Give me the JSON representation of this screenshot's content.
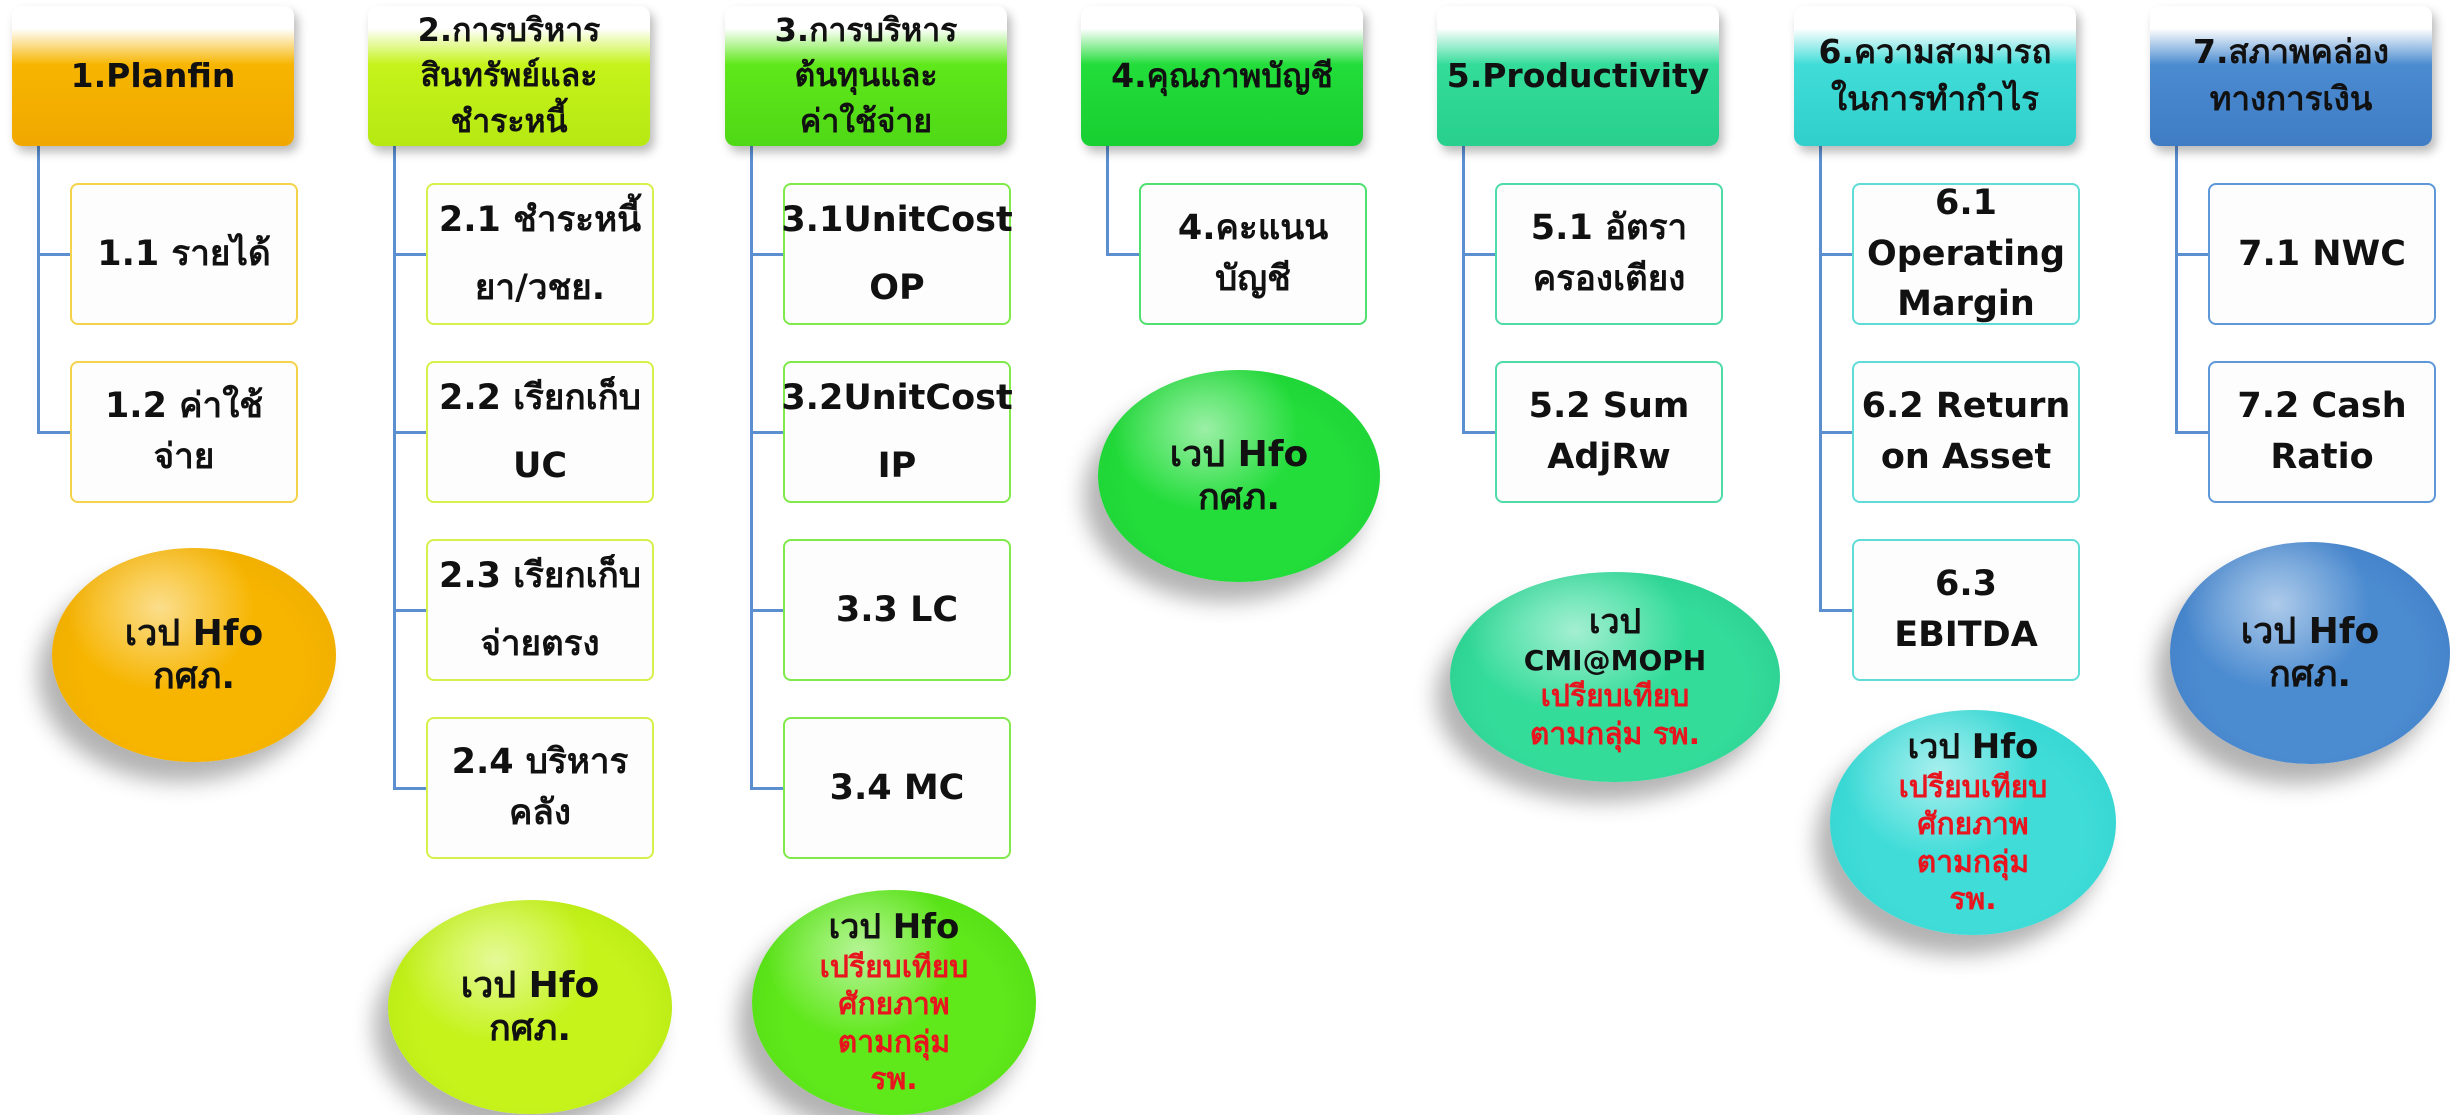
{
  "colors": {
    "orange": "#f7b500",
    "yellow_green": "#c5f31a",
    "green": "#5fe81a",
    "bright_green": "#22dd3a",
    "teal": "#34dc9a",
    "cyan": "#3fdcd8",
    "blue": "#4b8bd0",
    "connector": "#5b8fd0",
    "red_text": "#e8141e"
  },
  "columns": [
    {
      "header": [
        "1.Planfin"
      ],
      "subs": [
        {
          "lines": [
            "1.1 รายได้"
          ]
        },
        {
          "lines": [
            "1.2 ค่าใช้จ่าย"
          ]
        }
      ],
      "circle": {
        "main": [
          "เวป Hfo",
          "กศภ."
        ],
        "red": []
      }
    },
    {
      "header": [
        "2.การบริหาร",
        "สินทรัพย์และ",
        "ชำระหนี้"
      ],
      "subs": [
        {
          "lines": [
            "2.1 ชำระหนี้",
            "ยา/วชย."
          ]
        },
        {
          "lines": [
            "2.2 เรียกเก็บ",
            "UC"
          ]
        },
        {
          "lines": [
            "2.3 เรียกเก็บ",
            "จ่ายตรง"
          ]
        },
        {
          "lines": [
            "2.4 บริหาร",
            "คลัง"
          ]
        }
      ],
      "circle": {
        "main": [
          "เวป Hfo",
          "กศภ."
        ],
        "red": []
      }
    },
    {
      "header": [
        "3.การบริหาร",
        "ต้นทุนและ",
        "ค่าใช้จ่าย"
      ],
      "subs": [
        {
          "lines": [
            "3.1UnitCost",
            "OP"
          ]
        },
        {
          "lines": [
            "3.2UnitCost",
            "IP"
          ]
        },
        {
          "lines": [
            "3.3 LC"
          ]
        },
        {
          "lines": [
            "3.4 MC"
          ]
        }
      ],
      "circle": {
        "main": [
          "เวป Hfo"
        ],
        "red": [
          "เปรียบเทียบ",
          "ศักยภาพ",
          "ตามกลุ่ม",
          "รพ."
        ]
      }
    },
    {
      "header": [
        "4.คุณภาพบัญชี"
      ],
      "subs": [
        {
          "lines": [
            "4.คะแนน",
            "บัญชี"
          ]
        }
      ],
      "circle": {
        "main": [
          "เวป Hfo",
          "กศภ."
        ],
        "red": []
      }
    },
    {
      "header": [
        "5.Productivity"
      ],
      "subs": [
        {
          "lines": [
            "5.1 อัตรา",
            "ครองเตียง"
          ]
        },
        {
          "lines": [
            "5.2 Sum",
            "AdjRw"
          ]
        }
      ],
      "circle": {
        "main": [
          "เวป",
          "CMI@MOPH"
        ],
        "red": [
          "เปรียบเทียบ",
          "ตามกลุ่ม รพ."
        ]
      }
    },
    {
      "header": [
        "6.ความสามารถ",
        "ในการทำกำไร"
      ],
      "subs": [
        {
          "lines": [
            "6.1",
            "Operating",
            "Margin"
          ]
        },
        {
          "lines": [
            "6.2 Return",
            "on Asset"
          ]
        },
        {
          "lines": [
            "6.3 EBITDA"
          ]
        }
      ],
      "circle": {
        "main": [
          "เวป Hfo"
        ],
        "red": [
          "เปรียบเทียบ",
          "ศักยภาพ",
          "ตามกลุ่ม",
          "รพ."
        ]
      }
    },
    {
      "header": [
        "7.สภาพคล่อง",
        "ทางการเงิน"
      ],
      "subs": [
        {
          "lines": [
            "7.1 NWC"
          ]
        },
        {
          "lines": [
            "7.2 Cash",
            "Ratio"
          ]
        }
      ],
      "circle": {
        "main": [
          "เวป Hfo",
          "กศภ."
        ],
        "red": []
      }
    }
  ]
}
